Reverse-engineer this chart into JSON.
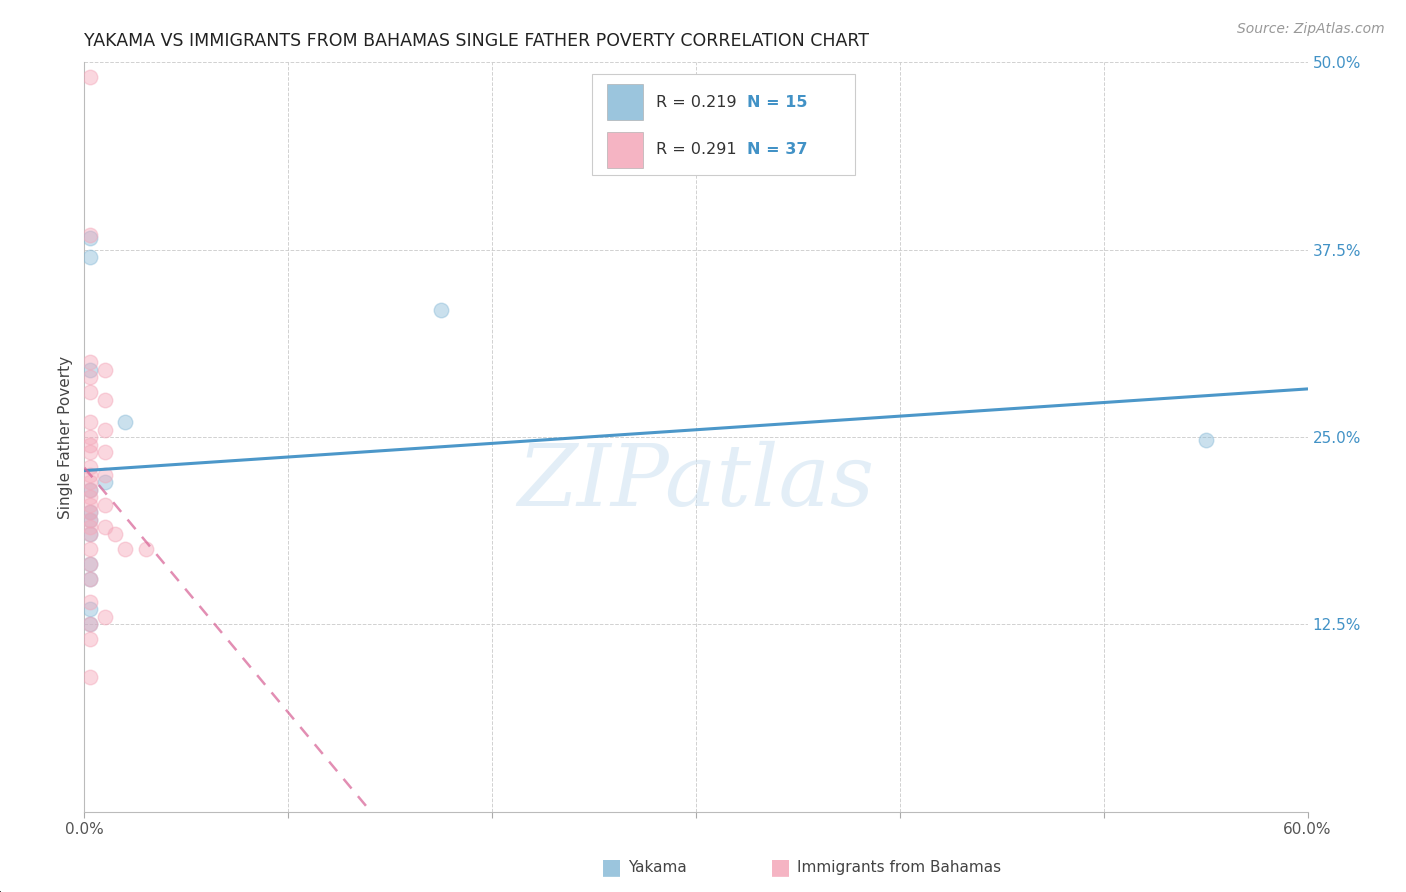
{
  "title": "YAKAMA VS IMMIGRANTS FROM BAHAMAS SINGLE FATHER POVERTY CORRELATION CHART",
  "source": "Source: ZipAtlas.com",
  "ylabel": "Single Father Poverty",
  "xlim": [
    0.0,
    0.6
  ],
  "ylim": [
    0.0,
    0.5
  ],
  "xticks": [
    0.0,
    0.1,
    0.2,
    0.3,
    0.4,
    0.5,
    0.6
  ],
  "yticks": [
    0.0,
    0.125,
    0.25,
    0.375,
    0.5
  ],
  "legend_labels": [
    "Yakama",
    "Immigrants from Bahamas"
  ],
  "blue_color": "#8abbd8",
  "pink_color": "#f4a7b9",
  "blue_line_color": "#4292c6",
  "pink_line_color": "#d9699a",
  "tick_label_color": "#4292c6",
  "R_blue": 0.219,
  "N_blue": 15,
  "R_pink": 0.291,
  "N_pink": 37,
  "blue_points": [
    [
      0.003,
      0.383
    ],
    [
      0.003,
      0.37
    ],
    [
      0.003,
      0.295
    ],
    [
      0.003,
      0.215
    ],
    [
      0.003,
      0.2
    ],
    [
      0.003,
      0.195
    ],
    [
      0.003,
      0.185
    ],
    [
      0.003,
      0.165
    ],
    [
      0.003,
      0.155
    ],
    [
      0.003,
      0.135
    ],
    [
      0.003,
      0.125
    ],
    [
      0.01,
      0.22
    ],
    [
      0.02,
      0.26
    ],
    [
      0.175,
      0.335
    ],
    [
      0.55,
      0.248
    ]
  ],
  "pink_points": [
    [
      0.003,
      0.49
    ],
    [
      0.003,
      0.385
    ],
    [
      0.003,
      0.3
    ],
    [
      0.003,
      0.29
    ],
    [
      0.003,
      0.28
    ],
    [
      0.003,
      0.26
    ],
    [
      0.003,
      0.25
    ],
    [
      0.003,
      0.245
    ],
    [
      0.003,
      0.24
    ],
    [
      0.003,
      0.23
    ],
    [
      0.003,
      0.225
    ],
    [
      0.003,
      0.22
    ],
    [
      0.003,
      0.215
    ],
    [
      0.003,
      0.21
    ],
    [
      0.003,
      0.205
    ],
    [
      0.003,
      0.2
    ],
    [
      0.003,
      0.195
    ],
    [
      0.003,
      0.19
    ],
    [
      0.003,
      0.185
    ],
    [
      0.003,
      0.175
    ],
    [
      0.003,
      0.165
    ],
    [
      0.003,
      0.155
    ],
    [
      0.003,
      0.14
    ],
    [
      0.003,
      0.125
    ],
    [
      0.003,
      0.115
    ],
    [
      0.003,
      0.09
    ],
    [
      0.01,
      0.295
    ],
    [
      0.01,
      0.275
    ],
    [
      0.01,
      0.255
    ],
    [
      0.01,
      0.24
    ],
    [
      0.01,
      0.225
    ],
    [
      0.01,
      0.205
    ],
    [
      0.01,
      0.19
    ],
    [
      0.01,
      0.13
    ],
    [
      0.015,
      0.185
    ],
    [
      0.02,
      0.175
    ],
    [
      0.03,
      0.175
    ]
  ],
  "background_color": "#ffffff",
  "grid_color": "#cccccc",
  "watermark_text": "ZIPatlas",
  "watermark_color": "#c8dff0",
  "watermark_alpha": 0.5,
  "marker_size": 110,
  "marker_alpha": 0.45,
  "marker_edge_alpha": 0.7
}
